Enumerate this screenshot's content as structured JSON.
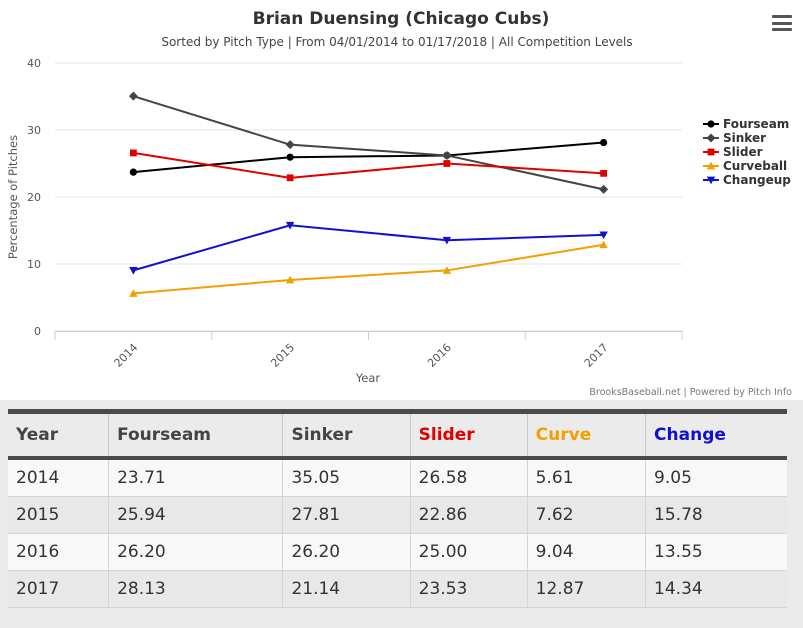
{
  "chart_data": {
    "type": "line",
    "title": "Brian Duensing (Chicago Cubs)",
    "subtitle": "Sorted by Pitch Type | From 04/01/2014 to 01/17/2018 | All Competition Levels",
    "xlabel": "Year",
    "ylabel": "Percentage of Pitches",
    "categories": [
      "2014",
      "2015",
      "2016",
      "2017"
    ],
    "yticks": [
      0,
      10,
      20,
      30,
      40
    ],
    "ylim": [
      0,
      40
    ],
    "grid": true,
    "legend_position": "right",
    "credits": "BrooksBaseball.net | Powered by Pitch Info",
    "series": [
      {
        "name": "Fourseam",
        "color": "#000000",
        "marker": "circle",
        "values": [
          23.71,
          25.94,
          26.2,
          28.13
        ]
      },
      {
        "name": "Sinker",
        "color": "#444444",
        "marker": "diamond",
        "values": [
          35.05,
          27.81,
          26.2,
          21.14
        ]
      },
      {
        "name": "Slider",
        "color": "#e00000",
        "marker": "square",
        "values": [
          26.58,
          22.86,
          25.0,
          23.53
        ]
      },
      {
        "name": "Curveball",
        "color": "#f0a000",
        "marker": "triangle",
        "values": [
          5.61,
          7.62,
          9.04,
          12.87
        ]
      },
      {
        "name": "Changeup",
        "color": "#1010d0",
        "marker": "triangle-down",
        "values": [
          9.05,
          15.78,
          13.55,
          14.34
        ]
      }
    ]
  },
  "table": {
    "headers": [
      {
        "label": "Year",
        "color": "#444444"
      },
      {
        "label": "Fourseam",
        "color": "#444444"
      },
      {
        "label": "Sinker",
        "color": "#444444"
      },
      {
        "label": "Slider",
        "color": "#e00000"
      },
      {
        "label": "Curve",
        "color": "#f0a000"
      },
      {
        "label": "Change",
        "color": "#1010d0"
      }
    ],
    "rows": [
      [
        "2014",
        "23.71",
        "35.05",
        "26.58",
        "5.61",
        "9.05"
      ],
      [
        "2015",
        "25.94",
        "27.81",
        "22.86",
        "7.62",
        "15.78"
      ],
      [
        "2016",
        "26.20",
        "26.20",
        "25.00",
        "9.04",
        "13.55"
      ],
      [
        "2017",
        "28.13",
        "21.14",
        "23.53",
        "12.87",
        "14.34"
      ]
    ]
  },
  "menu": {
    "icon": "hamburger-menu-icon"
  }
}
